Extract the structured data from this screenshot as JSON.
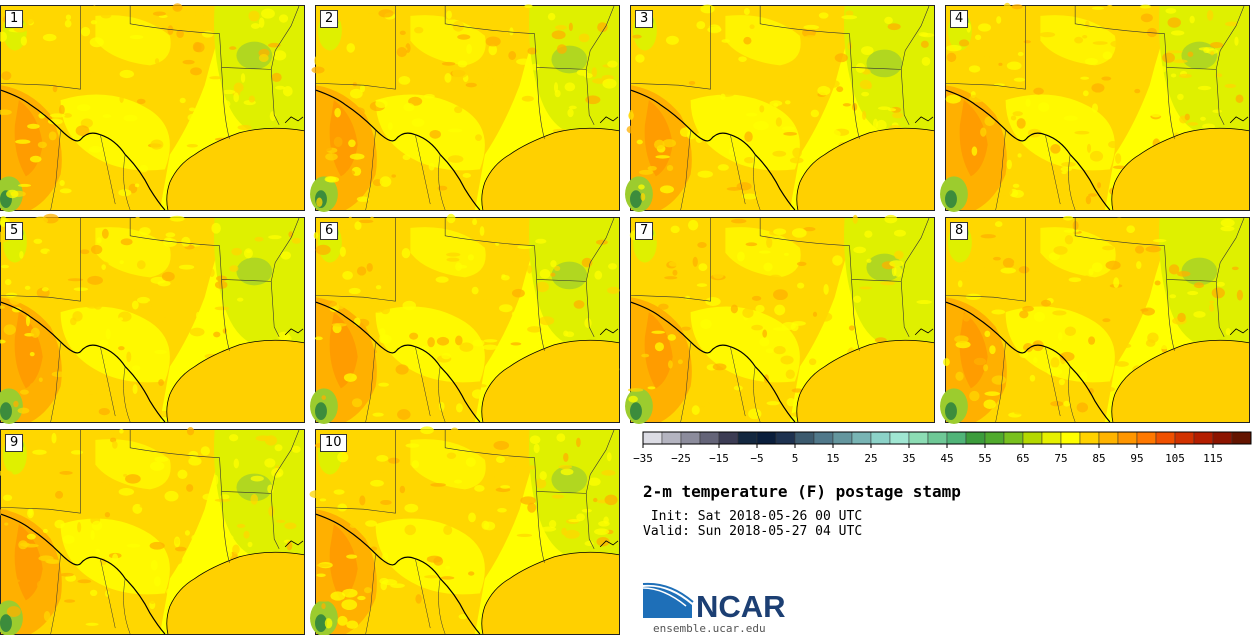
{
  "panels": [
    {
      "label": "1"
    },
    {
      "label": "2"
    },
    {
      "label": "3"
    },
    {
      "label": "4"
    },
    {
      "label": "5"
    },
    {
      "label": "6"
    },
    {
      "label": "7"
    },
    {
      "label": "8"
    },
    {
      "label": "9"
    },
    {
      "label": "10"
    }
  ],
  "colorbar": {
    "colors": [
      "#dcdce4",
      "#b4b4c0",
      "#8c8c9c",
      "#646478",
      "#3c3c54",
      "#142840",
      "#0a1e3c",
      "#1e3250",
      "#3c5a6e",
      "#50788a",
      "#64969e",
      "#78b4b4",
      "#8cd2c8",
      "#a0e6d2",
      "#8cdcb4",
      "#6ec896",
      "#50b478",
      "#3c9c3c",
      "#50aa2d",
      "#78c01e",
      "#b4d800",
      "#e6f000",
      "#ffff00",
      "#ffd200",
      "#ffb400",
      "#ff9600",
      "#ff7800",
      "#f05000",
      "#d23200",
      "#b41e00",
      "#8c1400",
      "#641400"
    ],
    "tick_labels": [
      "−35",
      "−25",
      "−15",
      "−5",
      "5",
      "15",
      "25",
      "35",
      "45",
      "55",
      "65",
      "75",
      "85",
      "95",
      "105",
      "115"
    ]
  },
  "title": "2-m temperature (F) postage stamp",
  "init_line": " Init: Sat 2018-05-26 00 UTC",
  "valid_line": "Valid: Sun 2018-05-27 04 UTC",
  "logo": {
    "text": "NCAR",
    "url": "ensemble.ucar.edu"
  },
  "palette": {
    "cool": "#dff000",
    "mild": "#ffff00",
    "warm": "#ffd700",
    "hot": "#ffb000",
    "hotter": "#ff9a00",
    "green": "#9ccc2e",
    "dark_green": "#3c8c3c",
    "gulf": "#ffd000"
  }
}
